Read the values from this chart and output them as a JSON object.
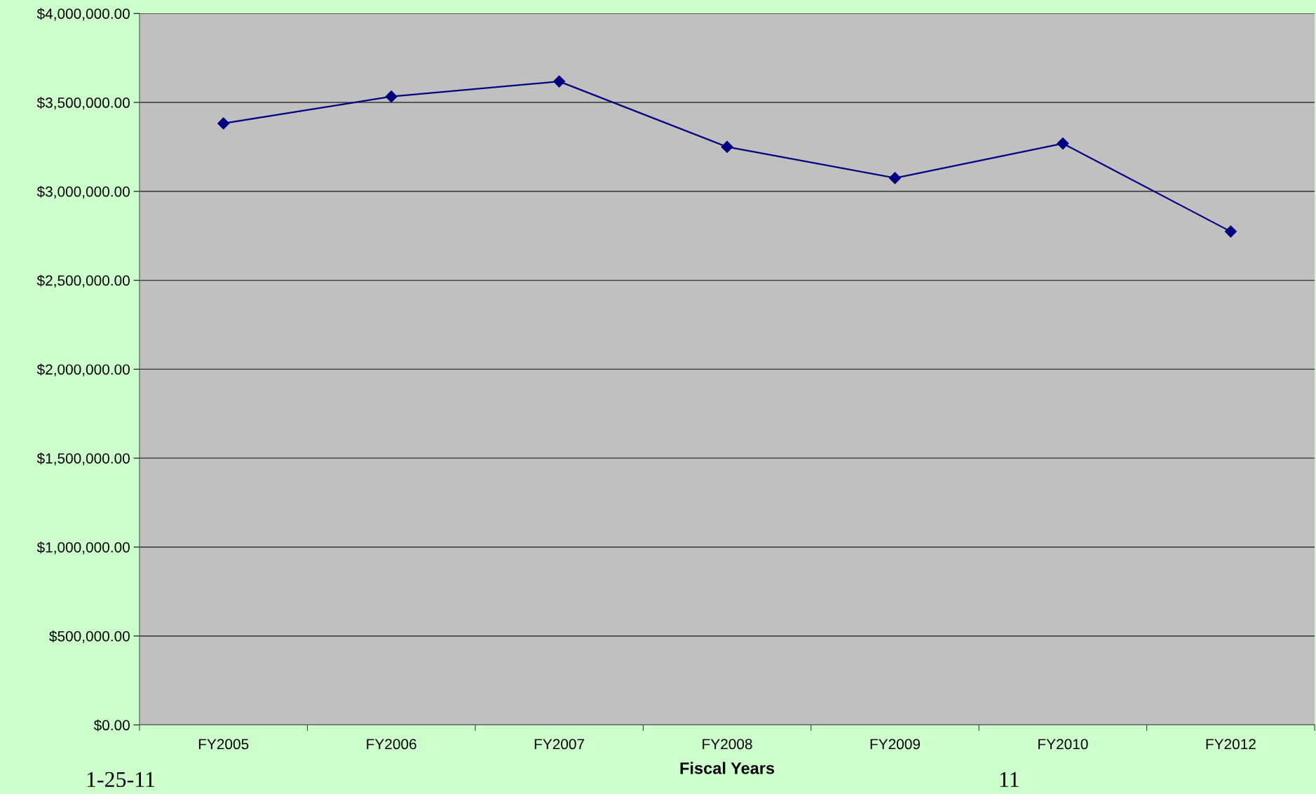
{
  "chart_data": {
    "type": "line",
    "xlabel": "Fiscal Years",
    "categories": [
      "FY2005",
      "FY2006",
      "FY2007",
      "FY2008",
      "FY2009",
      "FY2010",
      "FY2012"
    ],
    "series": [
      {
        "color": "#000080",
        "values": [
          3382000,
          3533000,
          3618000,
          3250000,
          3075000,
          3269000,
          2774000
        ]
      }
    ],
    "ylim": [
      0,
      4000000
    ],
    "yticks": [
      {
        "value": 0,
        "label": "$0.00"
      },
      {
        "value": 500000,
        "label": "$500,000.00"
      },
      {
        "value": 1000000,
        "label": "$1,000,000.00"
      },
      {
        "value": 1500000,
        "label": "$1,500,000.00"
      },
      {
        "value": 2000000,
        "label": "$2,000,000.00"
      },
      {
        "value": 2500000,
        "label": "$2,500,000.00"
      },
      {
        "value": 3000000,
        "label": "$3,000,000.00"
      },
      {
        "value": 3500000,
        "label": "$3,500,000.00"
      },
      {
        "value": 4000000,
        "label": "$4,000,000.00"
      }
    ],
    "grid": "y",
    "marker": "diamond",
    "line_style": "solid",
    "legend": false,
    "annotations": [
      "1-25-11",
      "11"
    ]
  }
}
